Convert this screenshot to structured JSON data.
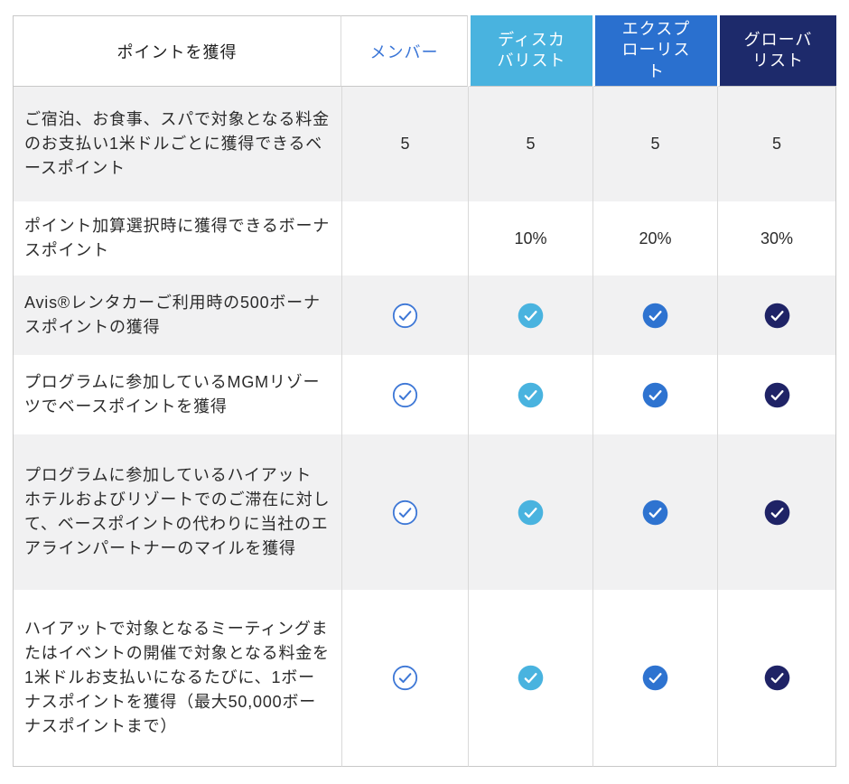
{
  "table": {
    "header": {
      "feature_label": "ポイントを獲得",
      "tiers": [
        {
          "id": "member",
          "label": "メンバー",
          "bg": "#ffffff",
          "text_color": "#3b76d7"
        },
        {
          "id": "discoverist",
          "label": "ディスカ\nバリスト",
          "bg": "#49b3df",
          "text_color": "#ffffff"
        },
        {
          "id": "explorist",
          "label": "エクスプ\nローリス\nト",
          "bg": "#2a70cf",
          "text_color": "#ffffff"
        },
        {
          "id": "globalist",
          "label": "グローバ\nリスト",
          "bg": "#1d2a6b",
          "text_color": "#ffffff"
        }
      ]
    },
    "rows": [
      {
        "feature": "ご宿泊、お食事、スパで対象となる料金のお支払い1米ドルごとに獲得できるベースポイント",
        "type": "text",
        "values": [
          "5",
          "5",
          "5",
          "5"
        ]
      },
      {
        "feature": "ポイント加算選択時に獲得できるボーナスポイント",
        "type": "text",
        "values": [
          "",
          "10%",
          "20%",
          "30%"
        ]
      },
      {
        "feature": "Avis®レンタカーご利用時の500ボーナスポイントの獲得",
        "type": "check",
        "values": [
          "check",
          "check",
          "check",
          "check"
        ]
      },
      {
        "feature": "プログラムに参加しているMGMリゾーツでベースポイントを獲得",
        "type": "check",
        "values": [
          "check",
          "check",
          "check",
          "check"
        ]
      },
      {
        "feature": "プログラムに参加しているハイアット ホテルおよびリゾートでのご滞在に対して、ベースポイントの代わりに当社のエアラインパートナーのマイルを獲得",
        "type": "check",
        "values": [
          "check",
          "check",
          "check",
          "check"
        ]
      },
      {
        "feature": "ハイアットで対象となるミーティングまたはイベントの開催で対象となる料金を1米ドルお支払いになるたびに、1ボーナスポイントを獲得（最大50,000ボーナスポイントまで）",
        "type": "check",
        "values": [
          "check",
          "check",
          "check",
          "check"
        ]
      }
    ],
    "check_style": {
      "member_outline_color": "#3d77d6",
      "filled_colors": [
        "#49b3df",
        "#2e73d0",
        "#1f2366"
      ]
    },
    "colors": {
      "outer_border": "#c8c8c8",
      "inner_border": "#d9d9d9",
      "striped_row_bg": "#f1f1f2",
      "body_text": "#2b2b2b"
    }
  }
}
